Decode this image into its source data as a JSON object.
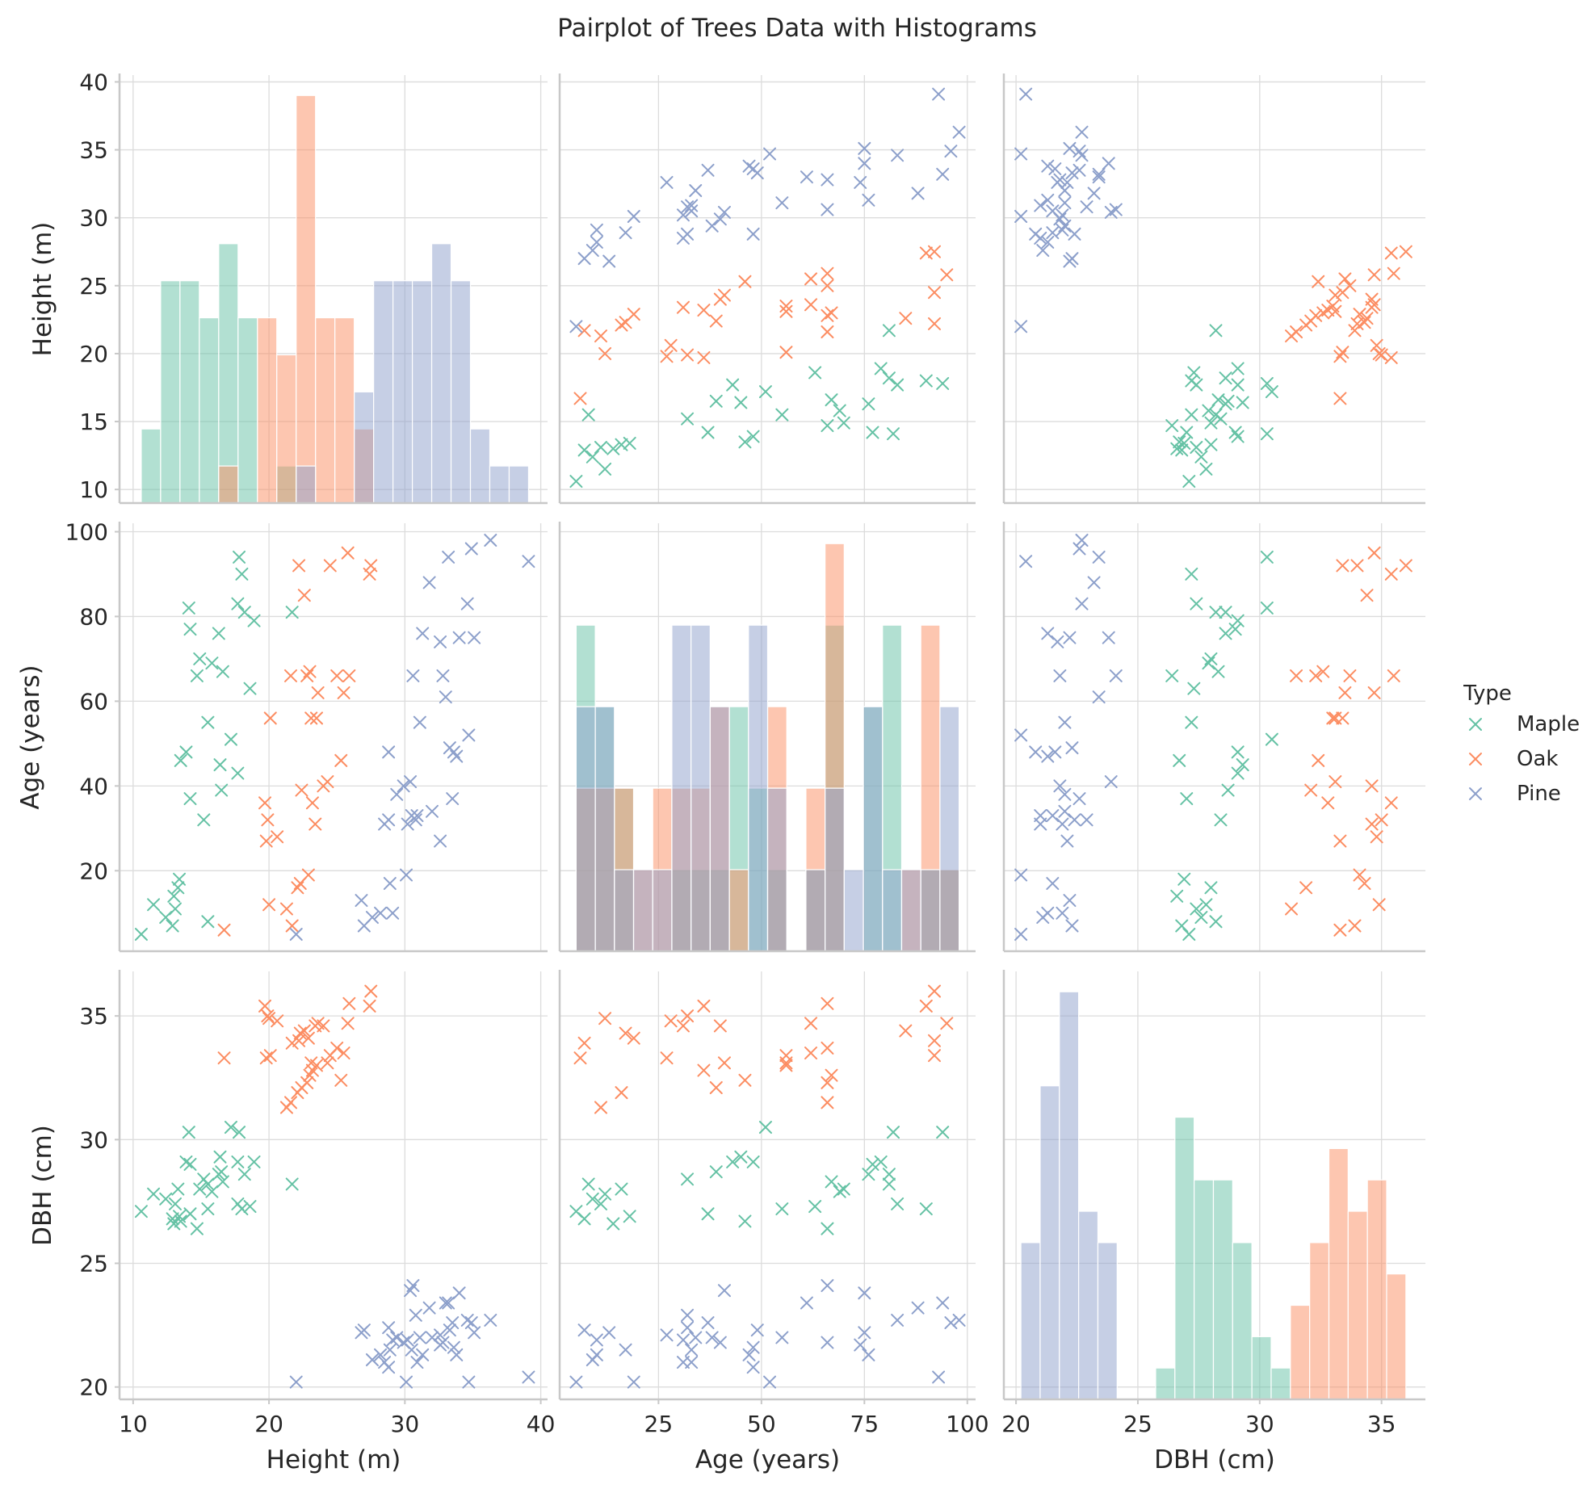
{
  "chart_data": {
    "type": "scatter",
    "title": "Pairplot of Trees Data with Histograms",
    "variables": [
      {
        "key": "height",
        "label": "Height (m)",
        "range": [
          9,
          40.5
        ],
        "ticks": [
          10,
          20,
          30,
          40
        ],
        "row_ticks": [
          10,
          15,
          20,
          25,
          30,
          35,
          40
        ]
      },
      {
        "key": "age",
        "label": "Age (years)",
        "range": [
          1,
          102
        ],
        "ticks": [
          25,
          50,
          75,
          100
        ],
        "row_ticks": [
          20,
          40,
          60,
          80,
          100
        ]
      },
      {
        "key": "dbh",
        "label": "DBH (cm)",
        "range": [
          19.5,
          36.8
        ],
        "ticks": [
          20,
          25,
          30,
          35
        ],
        "row_ticks": [
          20,
          25,
          30,
          35
        ]
      }
    ],
    "grid": true,
    "legend": {
      "title": "Type",
      "position": "right",
      "items": [
        "Maple",
        "Oak",
        "Pine"
      ]
    },
    "series": [
      {
        "name": "Maple",
        "color": "#66c2a5",
        "points": [
          {
            "height": 10.6,
            "age": 5,
            "dbh": 27.1
          },
          {
            "height": 11.5,
            "age": 12,
            "dbh": 27.8
          },
          {
            "height": 12.4,
            "age": 9,
            "dbh": 27.6
          },
          {
            "height": 12.9,
            "age": 7,
            "dbh": 26.8
          },
          {
            "height": 13.0,
            "age": 14,
            "dbh": 26.6
          },
          {
            "height": 13.1,
            "age": 11,
            "dbh": 27.4
          },
          {
            "height": 13.3,
            "age": 16,
            "dbh": 28.0
          },
          {
            "height": 13.4,
            "age": 18,
            "dbh": 26.9
          },
          {
            "height": 13.5,
            "age": 46,
            "dbh": 26.7
          },
          {
            "height": 13.9,
            "age": 48,
            "dbh": 29.1
          },
          {
            "height": 14.1,
            "age": 82,
            "dbh": 30.3
          },
          {
            "height": 14.2,
            "age": 77,
            "dbh": 29.0
          },
          {
            "height": 14.2,
            "age": 37,
            "dbh": 27.0
          },
          {
            "height": 14.7,
            "age": 66,
            "dbh": 26.4
          },
          {
            "height": 14.9,
            "age": 70,
            "dbh": 28.0
          },
          {
            "height": 15.2,
            "age": 32,
            "dbh": 28.4
          },
          {
            "height": 15.5,
            "age": 55,
            "dbh": 27.2
          },
          {
            "height": 15.5,
            "age": 8,
            "dbh": 28.2
          },
          {
            "height": 15.8,
            "age": 69,
            "dbh": 27.9
          },
          {
            "height": 16.3,
            "age": 76,
            "dbh": 28.6
          },
          {
            "height": 16.4,
            "age": 45,
            "dbh": 29.3
          },
          {
            "height": 16.5,
            "age": 39,
            "dbh": 28.7
          },
          {
            "height": 16.6,
            "age": 67,
            "dbh": 28.3
          },
          {
            "height": 17.2,
            "age": 51,
            "dbh": 30.5
          },
          {
            "height": 17.7,
            "age": 43,
            "dbh": 29.1
          },
          {
            "height": 17.7,
            "age": 83,
            "dbh": 27.4
          },
          {
            "height": 17.8,
            "age": 94,
            "dbh": 30.3
          },
          {
            "height": 18.0,
            "age": 90,
            "dbh": 27.2
          },
          {
            "height": 18.2,
            "age": 81,
            "dbh": 28.6
          },
          {
            "height": 18.6,
            "age": 63,
            "dbh": 27.3
          },
          {
            "height": 18.9,
            "age": 79,
            "dbh": 29.1
          },
          {
            "height": 21.7,
            "age": 81,
            "dbh": 28.2
          }
        ]
      },
      {
        "name": "Oak",
        "color": "#fc8d62",
        "points": [
          {
            "height": 16.7,
            "age": 6,
            "dbh": 33.3
          },
          {
            "height": 19.7,
            "age": 36,
            "dbh": 35.4
          },
          {
            "height": 19.8,
            "age": 27,
            "dbh": 33.3
          },
          {
            "height": 19.9,
            "age": 32,
            "dbh": 35.0
          },
          {
            "height": 20.0,
            "age": 12,
            "dbh": 34.9
          },
          {
            "height": 20.1,
            "age": 56,
            "dbh": 33.4
          },
          {
            "height": 20.6,
            "age": 28,
            "dbh": 34.8
          },
          {
            "height": 21.3,
            "age": 11,
            "dbh": 31.3
          },
          {
            "height": 21.6,
            "age": 66,
            "dbh": 31.5
          },
          {
            "height": 21.7,
            "age": 7,
            "dbh": 33.9
          },
          {
            "height": 22.1,
            "age": 16,
            "dbh": 31.9
          },
          {
            "height": 22.2,
            "age": 92,
            "dbh": 34.0
          },
          {
            "height": 22.3,
            "age": 17,
            "dbh": 34.3
          },
          {
            "height": 22.4,
            "age": 39,
            "dbh": 32.1
          },
          {
            "height": 22.6,
            "age": 85,
            "dbh": 34.4
          },
          {
            "height": 22.8,
            "age": 66,
            "dbh": 32.3
          },
          {
            "height": 22.9,
            "age": 19,
            "dbh": 34.1
          },
          {
            "height": 23.0,
            "age": 67,
            "dbh": 32.6
          },
          {
            "height": 23.1,
            "age": 56,
            "dbh": 33.1
          },
          {
            "height": 23.2,
            "age": 36,
            "dbh": 32.8
          },
          {
            "height": 23.4,
            "age": 31,
            "dbh": 34.6
          },
          {
            "height": 23.5,
            "age": 56,
            "dbh": 33.0
          },
          {
            "height": 23.6,
            "age": 62,
            "dbh": 34.7
          },
          {
            "height": 24.0,
            "age": 40,
            "dbh": 34.6
          },
          {
            "height": 24.3,
            "age": 41,
            "dbh": 33.1
          },
          {
            "height": 24.5,
            "age": 92,
            "dbh": 33.4
          },
          {
            "height": 25.0,
            "age": 66,
            "dbh": 33.7
          },
          {
            "height": 25.3,
            "age": 46,
            "dbh": 32.4
          },
          {
            "height": 25.5,
            "age": 62,
            "dbh": 33.5
          },
          {
            "height": 25.8,
            "age": 95,
            "dbh": 34.7
          },
          {
            "height": 25.9,
            "age": 66,
            "dbh": 35.5
          },
          {
            "height": 27.4,
            "age": 90,
            "dbh": 35.4
          },
          {
            "height": 27.5,
            "age": 92,
            "dbh": 36.0
          }
        ]
      },
      {
        "name": "Pine",
        "color": "#8da0cb",
        "points": [
          {
            "height": 22.0,
            "age": 5,
            "dbh": 20.2
          },
          {
            "height": 26.8,
            "age": 13,
            "dbh": 22.2
          },
          {
            "height": 27.0,
            "age": 7,
            "dbh": 22.3
          },
          {
            "height": 27.6,
            "age": 9,
            "dbh": 21.1
          },
          {
            "height": 28.2,
            "age": 10,
            "dbh": 21.3
          },
          {
            "height": 28.5,
            "age": 31,
            "dbh": 21.0
          },
          {
            "height": 28.8,
            "age": 32,
            "dbh": 22.4
          },
          {
            "height": 28.8,
            "age": 48,
            "dbh": 20.8
          },
          {
            "height": 28.9,
            "age": 17,
            "dbh": 21.5
          },
          {
            "height": 29.1,
            "age": 10,
            "dbh": 21.9
          },
          {
            "height": 29.4,
            "age": 38,
            "dbh": 22.0
          },
          {
            "height": 29.9,
            "age": 40,
            "dbh": 21.8
          },
          {
            "height": 30.1,
            "age": 19,
            "dbh": 20.2
          },
          {
            "height": 30.2,
            "age": 31,
            "dbh": 21.9
          },
          {
            "height": 30.4,
            "age": 41,
            "dbh": 23.9
          },
          {
            "height": 30.5,
            "age": 33,
            "dbh": 21.5
          },
          {
            "height": 30.6,
            "age": 66,
            "dbh": 24.1
          },
          {
            "height": 30.8,
            "age": 32,
            "dbh": 22.9
          },
          {
            "height": 30.9,
            "age": 33,
            "dbh": 21.0
          },
          {
            "height": 31.1,
            "age": 55,
            "dbh": 22.0
          },
          {
            "height": 31.3,
            "age": 76,
            "dbh": 21.3
          },
          {
            "height": 31.8,
            "age": 88,
            "dbh": 23.2
          },
          {
            "height": 32.0,
            "age": 34,
            "dbh": 22.0
          },
          {
            "height": 32.6,
            "age": 74,
            "dbh": 21.7
          },
          {
            "height": 32.6,
            "age": 27,
            "dbh": 22.1
          },
          {
            "height": 32.8,
            "age": 66,
            "dbh": 21.8
          },
          {
            "height": 33.0,
            "age": 61,
            "dbh": 23.4
          },
          {
            "height": 33.2,
            "age": 94,
            "dbh": 23.4
          },
          {
            "height": 33.3,
            "age": 49,
            "dbh": 22.3
          },
          {
            "height": 33.5,
            "age": 37,
            "dbh": 22.6
          },
          {
            "height": 33.6,
            "age": 48,
            "dbh": 21.6
          },
          {
            "height": 33.8,
            "age": 47,
            "dbh": 21.3
          },
          {
            "height": 34.0,
            "age": 75,
            "dbh": 23.8
          },
          {
            "height": 34.6,
            "age": 83,
            "dbh": 22.7
          },
          {
            "height": 34.7,
            "age": 52,
            "dbh": 20.2
          },
          {
            "height": 34.9,
            "age": 96,
            "dbh": 22.6
          },
          {
            "height": 35.1,
            "age": 75,
            "dbh": 22.2
          },
          {
            "height": 36.3,
            "age": 98,
            "dbh": 22.7
          },
          {
            "height": 39.1,
            "age": 93,
            "dbh": 20.4
          }
        ]
      }
    ]
  }
}
